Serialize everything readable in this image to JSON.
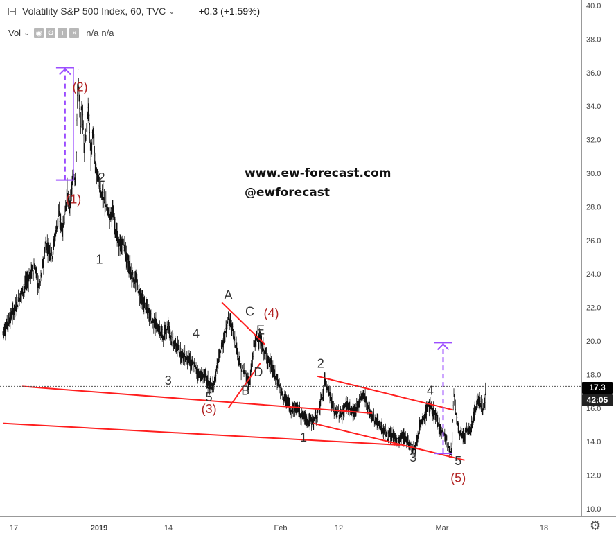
{
  "header": {
    "title": "Volatility S&P 500 Index, 60, TVC",
    "change": "+0.3 (+1.59%)",
    "vol_label": "Vol",
    "vol_value_1": "n/a",
    "vol_value_2": "n/a"
  },
  "watermark": {
    "url": "www.ew-forecast.com",
    "handle": "@ewforecast"
  },
  "price_tag": {
    "price": "17.3",
    "timer": "42:05"
  },
  "colors": {
    "price": "#111111",
    "channel": "#ff1e1e",
    "projection": "#9b4dff",
    "wave_major": "#b22222",
    "wave_minor": "#333333"
  },
  "chart_data": {
    "type": "line",
    "style": "candlestick-ohlc",
    "ylim": [
      10,
      40
    ],
    "y_ticks": [
      "40.0",
      "38.0",
      "36.0",
      "34.0",
      "32.0",
      "30.0",
      "28.0",
      "26.0",
      "24.0",
      "22.0",
      "20.0",
      "18.0",
      "16.0",
      "14.0",
      "12.0",
      "10.0"
    ],
    "x_ticks": [
      "17",
      "2019",
      "14",
      "Feb",
      "12",
      "Mar",
      "18"
    ],
    "last_value": 17.3,
    "series": [
      {
        "values": [
          [
            0,
            20.5
          ],
          [
            4,
            21.5
          ],
          [
            8,
            22.6
          ],
          [
            12,
            23.8
          ],
          [
            15,
            24.5
          ],
          [
            17,
            23.0
          ],
          [
            20,
            25.8
          ],
          [
            23,
            25.2
          ],
          [
            26,
            27.5
          ],
          [
            28,
            26.6
          ],
          [
            30,
            28.8
          ],
          [
            31,
            28.0
          ],
          [
            33,
            30.0
          ],
          [
            34,
            29.6
          ],
          [
            35,
            36.2
          ],
          [
            36,
            33.0
          ],
          [
            37,
            33.8
          ],
          [
            38,
            31.5
          ],
          [
            40,
            33.8
          ],
          [
            41,
            31.0
          ],
          [
            42,
            32.5
          ],
          [
            43,
            30.5
          ],
          [
            44,
            29.9
          ],
          [
            46,
            28.8
          ],
          [
            48,
            28.0
          ],
          [
            50,
            27.5
          ],
          [
            51,
            27.8
          ],
          [
            53,
            26.4
          ],
          [
            55,
            25.5
          ],
          [
            56,
            25.9
          ],
          [
            58,
            24.8
          ],
          [
            60,
            24.0
          ],
          [
            62,
            23.5
          ],
          [
            65,
            22.4
          ],
          [
            67,
            21.9
          ],
          [
            70,
            21.2
          ],
          [
            73,
            20.6
          ],
          [
            75,
            20.3
          ],
          [
            77,
            21.0
          ],
          [
            79,
            20.0
          ],
          [
            81,
            19.6
          ],
          [
            83,
            19.3
          ],
          [
            86,
            18.9
          ],
          [
            89,
            18.5
          ],
          [
            92,
            17.9
          ],
          [
            94,
            18.0
          ],
          [
            96,
            17.4
          ],
          [
            98,
            17.2
          ],
          [
            100,
            18.6
          ],
          [
            103,
            20.2
          ],
          [
            105,
            21.4
          ],
          [
            107,
            20.7
          ],
          [
            109,
            19.5
          ],
          [
            111,
            18.3
          ],
          [
            113,
            18.0
          ],
          [
            115,
            17.5
          ],
          [
            117,
            19.8
          ],
          [
            119,
            20.3
          ],
          [
            121,
            19.6
          ],
          [
            123,
            19.0
          ],
          [
            125,
            18.5
          ],
          [
            127,
            17.9
          ],
          [
            129,
            17.2
          ],
          [
            131,
            16.6
          ],
          [
            133,
            16.2
          ],
          [
            135,
            16.0
          ],
          [
            137,
            16.0
          ],
          [
            139,
            15.6
          ],
          [
            141,
            15.4
          ],
          [
            143,
            15.2
          ],
          [
            145,
            15.3
          ],
          [
            147,
            15.8
          ],
          [
            149,
            16.8
          ],
          [
            150,
            17.7
          ],
          [
            152,
            17.0
          ],
          [
            154,
            15.9
          ],
          [
            156,
            15.7
          ],
          [
            158,
            15.6
          ],
          [
            160,
            16.3
          ],
          [
            162,
            15.9
          ],
          [
            164,
            15.7
          ],
          [
            166,
            16.4
          ],
          [
            168,
            16.9
          ],
          [
            170,
            16.1
          ],
          [
            172,
            15.5
          ],
          [
            174,
            15.2
          ],
          [
            176,
            14.9
          ],
          [
            178,
            14.5
          ],
          [
            180,
            14.3
          ],
          [
            182,
            14.4
          ],
          [
            184,
            14.0
          ],
          [
            186,
            14.3
          ],
          [
            188,
            14.1
          ],
          [
            190,
            13.8
          ],
          [
            192,
            13.6
          ],
          [
            194,
            14.9
          ],
          [
            196,
            15.3
          ],
          [
            198,
            16.2
          ],
          [
            200,
            15.9
          ],
          [
            202,
            15.4
          ],
          [
            204,
            14.6
          ],
          [
            206,
            14.3
          ],
          [
            208,
            13.5
          ],
          [
            209,
            13.3
          ],
          [
            210,
            16.8
          ],
          [
            212,
            14.7
          ],
          [
            214,
            14.3
          ],
          [
            216,
            14.6
          ],
          [
            218,
            14.8
          ],
          [
            220,
            16.0
          ],
          [
            222,
            16.5
          ],
          [
            224,
            15.8
          ],
          [
            225,
            17.3
          ]
        ]
      }
    ],
    "lines": [
      {
        "x1": 0.0,
        "y1": 15.1,
        "x2": 185.0,
        "y2": 13.8
      },
      {
        "x1": 9.0,
        "y1": 17.3,
        "x2": 172.0,
        "y2": 15.7
      },
      {
        "x1": 144.5,
        "y1": 15.1,
        "x2": 215.0,
        "y2": 12.9
      },
      {
        "x1": 146.5,
        "y1": 17.9,
        "x2": 209.5,
        "y2": 15.9
      },
      {
        "x1": 102.0,
        "y1": 22.3,
        "x2": 122.0,
        "y2": 19.8
      },
      {
        "x1": 105.0,
        "y1": 16.0,
        "x2": 120.0,
        "y2": 18.7
      }
    ],
    "projections": [
      {
        "x": 29,
        "y_from": 29.6,
        "y_to": 36.3
      },
      {
        "x": 205,
        "y_from": 13.3,
        "y_to": 19.9
      }
    ],
    "annotations": [
      {
        "text": "(2)",
        "x": 36,
        "y": 34.9,
        "major": true
      },
      {
        "text": "(1)",
        "x": 33,
        "y": 28.2,
        "major": true
      },
      {
        "text": "2",
        "x": 46,
        "y": 29.5,
        "major": false
      },
      {
        "text": "1",
        "x": 45,
        "y": 24.6,
        "major": false
      },
      {
        "text": "A",
        "x": 105,
        "y": 22.5,
        "major": false
      },
      {
        "text": "C",
        "x": 115,
        "y": 21.5,
        "major": false
      },
      {
        "text": "(4)",
        "x": 125,
        "y": 21.4,
        "major": true
      },
      {
        "text": "E",
        "x": 120,
        "y": 20.4,
        "major": false
      },
      {
        "text": "4",
        "x": 90,
        "y": 20.2,
        "major": false
      },
      {
        "text": "3",
        "x": 77,
        "y": 17.4,
        "major": false
      },
      {
        "text": "5",
        "x": 96,
        "y": 16.4,
        "major": false
      },
      {
        "text": "D",
        "x": 119,
        "y": 17.9,
        "major": false
      },
      {
        "text": "B",
        "x": 113,
        "y": 16.8,
        "major": false
      },
      {
        "text": "(3)",
        "x": 96,
        "y": 15.7,
        "major": true
      },
      {
        "text": "2",
        "x": 148,
        "y": 18.4,
        "major": false
      },
      {
        "text": "1",
        "x": 140,
        "y": 14.0,
        "major": false
      },
      {
        "text": "4",
        "x": 199,
        "y": 16.8,
        "major": false
      },
      {
        "text": "3",
        "x": 191,
        "y": 12.8,
        "major": false
      },
      {
        "text": "5",
        "x": 212,
        "y": 12.6,
        "major": false
      },
      {
        "text": "(5)",
        "x": 212,
        "y": 11.6,
        "major": true
      }
    ]
  }
}
